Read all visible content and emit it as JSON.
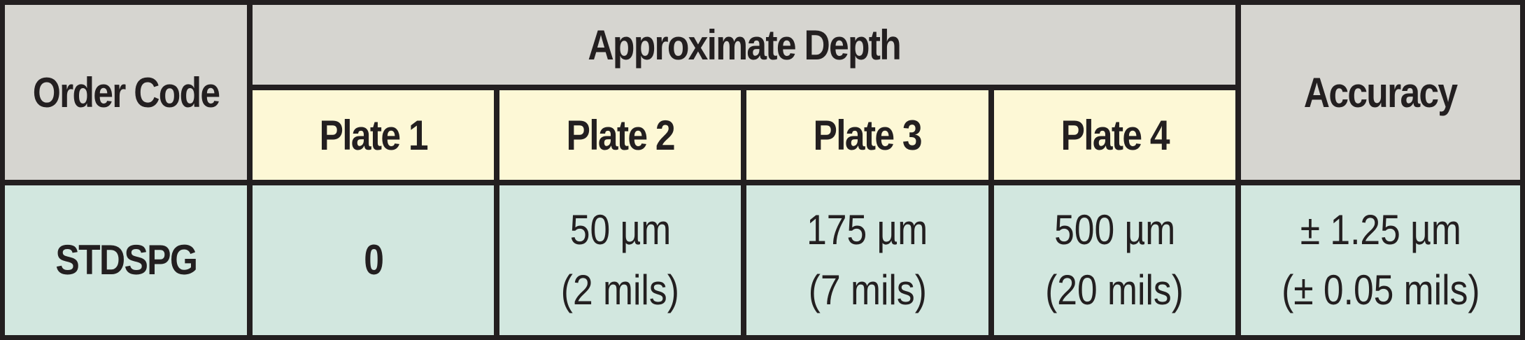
{
  "header": {
    "order_code": "Order Code",
    "group": "Approximate Depth",
    "plates": [
      "Plate 1",
      "Plate 2",
      "Plate 3",
      "Plate 4"
    ],
    "accuracy": "Accuracy"
  },
  "rows": [
    {
      "code": "STDSPG",
      "depths": [
        [
          "0"
        ],
        [
          "50 µm",
          "(2 mils)"
        ],
        [
          "175 µm",
          "(7 mils)"
        ],
        [
          "500 µm",
          "(20 mils)"
        ]
      ],
      "accuracy": [
        "± 1.25 µm",
        "(± 0.05 mils)"
      ]
    }
  ]
}
